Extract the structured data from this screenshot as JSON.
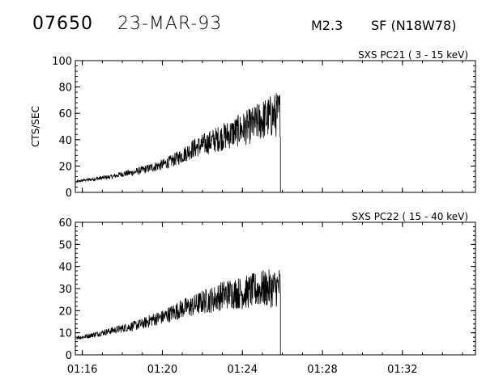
{
  "header": {
    "event_number": "07650",
    "date": "23-MAR-93",
    "flare_class": "M2.3",
    "location": "SF (N18W78)"
  },
  "chart_data": [
    {
      "type": "line",
      "title": "SXS PC21  (  3 - 15 keV)",
      "ylabel": "CTS/SEC",
      "xlabel": "",
      "ylim": [
        0,
        100
      ],
      "yticks": [
        0,
        20,
        40,
        60,
        80,
        100
      ],
      "xlim_minutes": [
        75.65,
        95.65
      ],
      "xticks": [
        "01:16",
        "01:20",
        "01:24",
        "01:28",
        "01:32"
      ],
      "grid": false,
      "series": [
        {
          "x": [
            "01:15.7",
            "01:16.0",
            "01:16.5",
            "01:17.0",
            "01:17.5",
            "01:18.0",
            "01:18.5",
            "01:19.0",
            "01:19.5",
            "01:20.0",
            "01:20.5",
            "01:21.0",
            "01:21.5",
            "01:22.0",
            "01:22.5",
            "01:23.0",
            "01:23.5",
            "01:24.0",
            "01:24.5",
            "01:25.0",
            "01:25.5",
            "01:25.9"
          ],
          "values": [
            8,
            9,
            10,
            11,
            12,
            14,
            15,
            17,
            19,
            21,
            24,
            28,
            33,
            36,
            39,
            42,
            45,
            48,
            51,
            55,
            58,
            60
          ]
        }
      ],
      "end_time": "01:25.9"
    },
    {
      "type": "line",
      "title": "SXS PC22  ( 15 - 40 keV)",
      "ylabel": "",
      "xlabel": "",
      "ylim": [
        0,
        60
      ],
      "yticks": [
        0,
        10,
        20,
        30,
        40,
        50,
        60
      ],
      "xlim_minutes": [
        75.65,
        95.65
      ],
      "xticks": [
        "01:16",
        "01:20",
        "01:24",
        "01:28",
        "01:32"
      ],
      "grid": false,
      "series": [
        {
          "x": [
            "01:15.7",
            "01:16.0",
            "01:16.5",
            "01:17.0",
            "01:17.5",
            "01:18.0",
            "01:18.5",
            "01:19.0",
            "01:19.5",
            "01:20.0",
            "01:20.5",
            "01:21.0",
            "01:21.5",
            "01:22.0",
            "01:22.5",
            "01:23.0",
            "01:23.5",
            "01:24.0",
            "01:24.5",
            "01:25.0",
            "01:25.5",
            "01:25.9"
          ],
          "values": [
            8,
            8,
            9,
            10,
            11,
            12,
            13,
            14,
            16,
            17,
            19,
            21,
            22,
            24,
            25,
            27,
            28,
            28,
            29,
            30,
            30,
            31
          ]
        }
      ],
      "end_time": "01:25.9"
    }
  ]
}
